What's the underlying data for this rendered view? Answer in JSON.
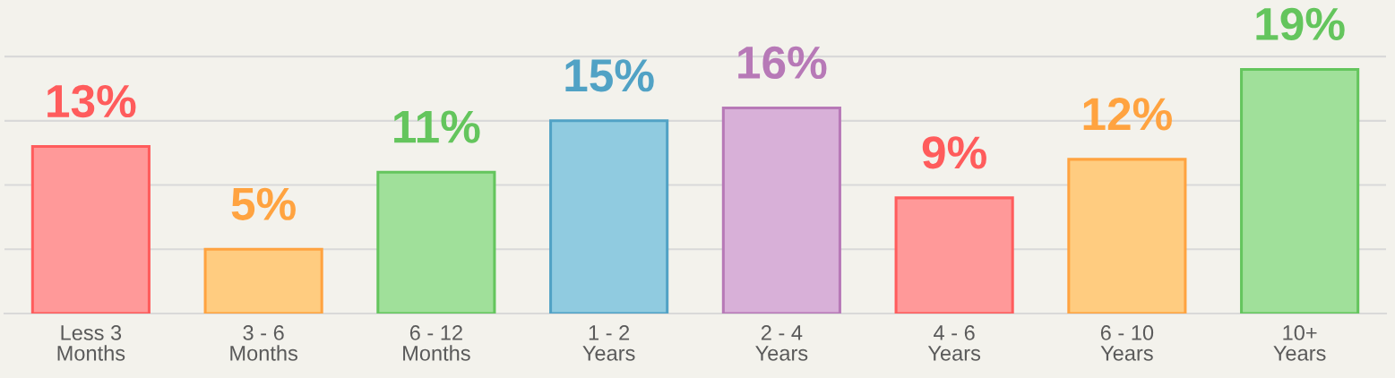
{
  "chart_data": {
    "type": "bar",
    "categories": [
      "Less 3\nMonths",
      "3 - 6\nMonths",
      "6 - 12\nMonths",
      "1 - 2\nYears",
      "2 - 4\nYears",
      "4 - 6\nYears",
      "6 - 10\nYears",
      "10+\nYears"
    ],
    "values": [
      13,
      5,
      11,
      15,
      16,
      9,
      12,
      19
    ],
    "value_labels": [
      "13%",
      "5%",
      "11%",
      "15%",
      "16%",
      "9%",
      "12%",
      "19%"
    ],
    "colors": [
      "#ff9999",
      "#ffcc80",
      "#a0e09a",
      "#90cbe0",
      "#d8b0d8",
      "#ff9999",
      "#ffcc80",
      "#a0e09a"
    ],
    "ylim": [
      0,
      24.4
    ],
    "yticks": [
      {
        "value": 0,
        "label": null
      },
      {
        "value": 5,
        "label": null
      },
      {
        "value": 10,
        "label": null
      },
      {
        "value": 15,
        "label": null
      },
      {
        "value": 20,
        "label": null
      }
    ],
    "grid": "y",
    "tick_labels": "x"
  }
}
